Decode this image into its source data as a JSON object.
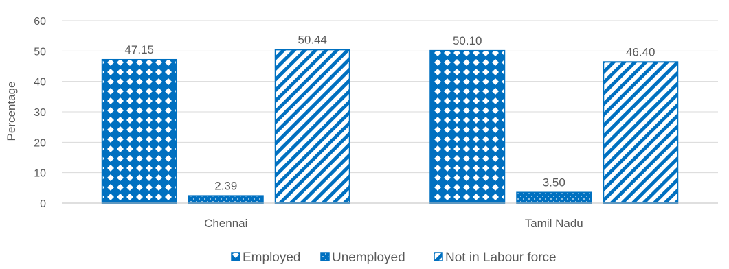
{
  "chart_data": {
    "type": "bar",
    "title": "",
    "xlabel": "",
    "ylabel": "Percentage",
    "ylim": [
      0,
      60
    ],
    "yticks": [
      0,
      10,
      20,
      30,
      40,
      50,
      60
    ],
    "grid": true,
    "legend_position": "bottom",
    "categories": [
      "Chennai",
      "Tamil Nadu"
    ],
    "series": [
      {
        "name": "Employed",
        "values": [
          47.15,
          50.1
        ],
        "labels": [
          "47.15",
          "50.10"
        ],
        "color": "#0070c0",
        "pattern": "diamond-grid"
      },
      {
        "name": "Unemployed",
        "values": [
          2.39,
          3.5
        ],
        "labels": [
          "2.39",
          "3.50"
        ],
        "color": "#0070c0",
        "pattern": "dots"
      },
      {
        "name": "Not in Labour force",
        "values": [
          50.44,
          46.4
        ],
        "labels": [
          "50.44",
          "46.40"
        ],
        "color": "#0070c0",
        "pattern": "diagonal-stripes"
      }
    ]
  }
}
